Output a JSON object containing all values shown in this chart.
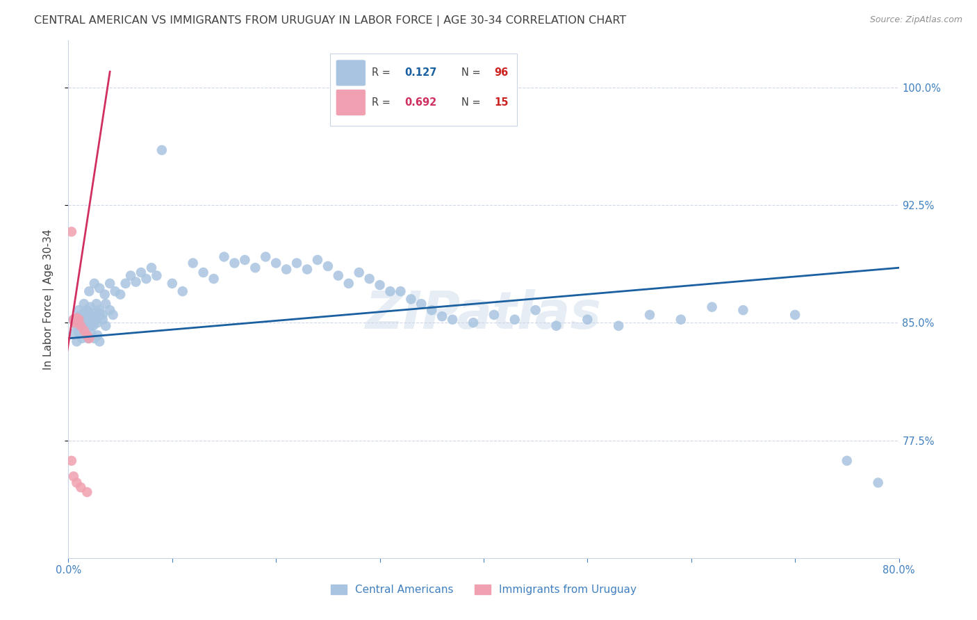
{
  "title": "CENTRAL AMERICAN VS IMMIGRANTS FROM URUGUAY IN LABOR FORCE | AGE 30-34 CORRELATION CHART",
  "source": "Source: ZipAtlas.com",
  "ylabel": "In Labor Force | Age 30-34",
  "xlim": [
    0.0,
    0.8
  ],
  "ylim": [
    0.7,
    1.03
  ],
  "xticks": [
    0.0,
    0.1,
    0.2,
    0.3,
    0.4,
    0.5,
    0.6,
    0.7,
    0.8
  ],
  "xticklabels": [
    "0.0%",
    "",
    "",
    "",
    "",
    "",
    "",
    "",
    "80.0%"
  ],
  "yticks": [
    0.775,
    0.85,
    0.925,
    1.0
  ],
  "yticklabels": [
    "77.5%",
    "85.0%",
    "92.5%",
    "100.0%"
  ],
  "blue_color": "#a8c4e0",
  "blue_line_color": "#1a5fa0",
  "pink_color": "#f0a0b0",
  "pink_line_color": "#d03060",
  "legend_label_blue": "Central Americans",
  "legend_label_pink": "Immigrants from Uruguay",
  "watermark": "ZIPatlas",
  "blue_scatter_x": [
    0.005,
    0.008,
    0.01,
    0.012,
    0.015,
    0.018,
    0.02,
    0.022,
    0.025,
    0.028,
    0.005,
    0.008,
    0.01,
    0.013,
    0.016,
    0.019,
    0.022,
    0.025,
    0.028,
    0.03,
    0.01,
    0.012,
    0.015,
    0.018,
    0.021,
    0.024,
    0.027,
    0.03,
    0.033,
    0.036,
    0.015,
    0.018,
    0.021,
    0.024,
    0.027,
    0.03,
    0.033,
    0.036,
    0.04,
    0.043,
    0.02,
    0.025,
    0.03,
    0.035,
    0.04,
    0.045,
    0.05,
    0.055,
    0.06,
    0.065,
    0.07,
    0.075,
    0.08,
    0.085,
    0.09,
    0.1,
    0.11,
    0.12,
    0.13,
    0.14,
    0.15,
    0.16,
    0.17,
    0.18,
    0.19,
    0.2,
    0.21,
    0.22,
    0.23,
    0.24,
    0.25,
    0.26,
    0.27,
    0.28,
    0.29,
    0.3,
    0.31,
    0.32,
    0.33,
    0.34,
    0.35,
    0.36,
    0.37,
    0.39,
    0.41,
    0.43,
    0.45,
    0.47,
    0.5,
    0.53,
    0.56,
    0.59,
    0.62,
    0.65,
    0.7,
    0.75,
    0.78
  ],
  "blue_scatter_y": [
    0.852,
    0.848,
    0.854,
    0.85,
    0.856,
    0.848,
    0.852,
    0.848,
    0.854,
    0.85,
    0.843,
    0.838,
    0.844,
    0.84,
    0.845,
    0.84,
    0.843,
    0.84,
    0.842,
    0.838,
    0.858,
    0.854,
    0.856,
    0.85,
    0.854,
    0.848,
    0.852,
    0.856,
    0.852,
    0.848,
    0.862,
    0.858,
    0.86,
    0.856,
    0.862,
    0.858,
    0.855,
    0.862,
    0.858,
    0.855,
    0.87,
    0.875,
    0.872,
    0.868,
    0.875,
    0.87,
    0.868,
    0.875,
    0.88,
    0.876,
    0.882,
    0.878,
    0.885,
    0.88,
    0.96,
    0.875,
    0.87,
    0.888,
    0.882,
    0.878,
    0.892,
    0.888,
    0.89,
    0.885,
    0.892,
    0.888,
    0.884,
    0.888,
    0.884,
    0.89,
    0.886,
    0.88,
    0.875,
    0.882,
    0.878,
    0.874,
    0.87,
    0.87,
    0.865,
    0.862,
    0.858,
    0.854,
    0.852,
    0.85,
    0.855,
    0.852,
    0.858,
    0.848,
    0.852,
    0.848,
    0.855,
    0.852,
    0.86,
    0.858,
    0.855,
    0.762,
    0.748
  ],
  "pink_scatter_x": [
    0.003,
    0.005,
    0.006,
    0.008,
    0.009,
    0.01,
    0.012,
    0.015,
    0.018,
    0.02,
    0.003,
    0.005,
    0.008,
    0.012,
    0.018
  ],
  "pink_scatter_y": [
    0.908,
    0.852,
    0.85,
    0.853,
    0.85,
    0.852,
    0.848,
    0.845,
    0.842,
    0.84,
    0.762,
    0.752,
    0.748,
    0.745,
    0.742
  ],
  "blue_line_x": [
    0.0,
    0.8
  ],
  "blue_line_y": [
    0.84,
    0.885
  ],
  "pink_line_x": [
    -0.005,
    0.04
  ],
  "pink_line_y": [
    0.815,
    1.01
  ],
  "grid_color": "#d0d8e8",
  "title_color": "#404040",
  "axis_color": "#4080c0",
  "bg_color": "#ffffff",
  "title_fontsize": 11.5,
  "label_fontsize": 11,
  "tick_fontsize": 10.5,
  "source_fontsize": 9
}
